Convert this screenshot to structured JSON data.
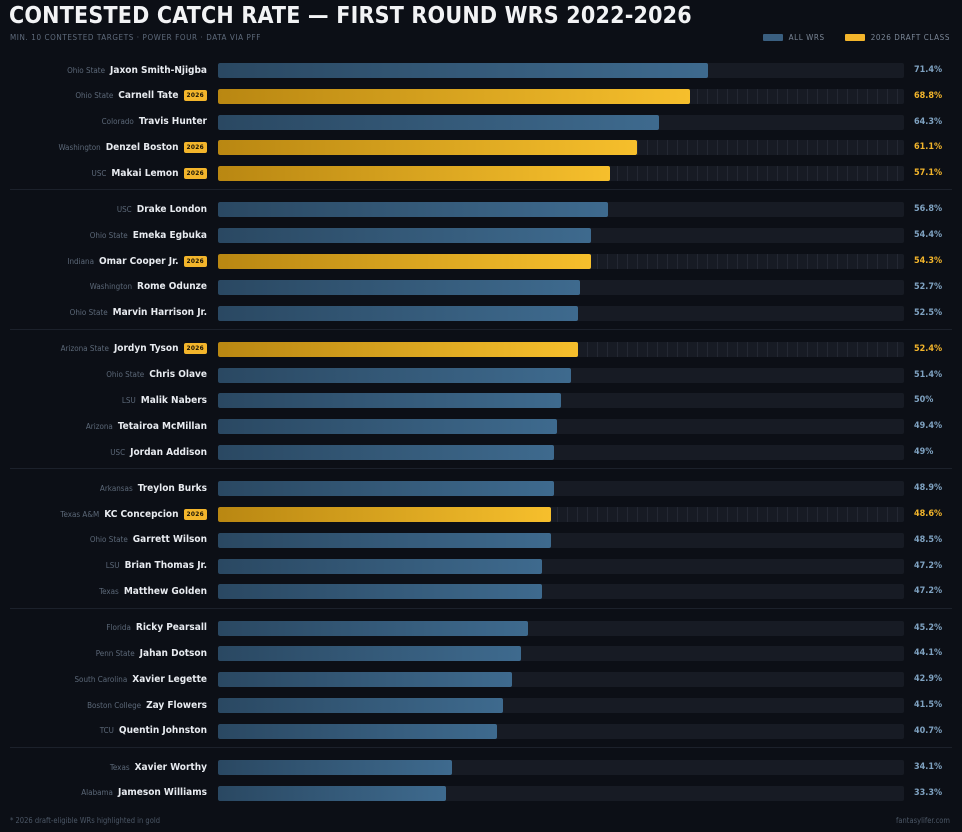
{
  "header": {
    "title": "CONTESTED CATCH RATE — FIRST ROUND WRS 2022-2026",
    "subtitle": "MIN. 10 CONTESTED TARGETS · POWER FOUR · DATA VIA PFF"
  },
  "legend": [
    {
      "label": "ALL WRS",
      "color": "#3a5f80"
    },
    {
      "label": "2026 DRAFT CLASS",
      "color": "#f3b52b"
    }
  ],
  "badge_label": "2026",
  "footer": {
    "note": "* 2026 draft-eligible WRs highlighted in gold",
    "credit": "fantasylifer.com"
  },
  "chart_data": {
    "type": "bar",
    "orientation": "horizontal",
    "title": "CONTESTED CATCH RATE — FIRST ROUND WRS 2022-2026",
    "xlim": [
      0,
      100
    ],
    "unit": "%",
    "rows": [
      {
        "school": "Ohio State",
        "player": "Jaxon Smith-Njigba",
        "value": 71.4,
        "label": "71.4%",
        "draft2026": false
      },
      {
        "school": "Ohio State",
        "player": "Carnell Tate",
        "value": 68.8,
        "label": "68.8%",
        "draft2026": true
      },
      {
        "school": "Colorado",
        "player": "Travis Hunter",
        "value": 64.3,
        "label": "64.3%",
        "draft2026": false
      },
      {
        "school": "Washington",
        "player": "Denzel Boston",
        "value": 61.1,
        "label": "61.1%",
        "draft2026": true
      },
      {
        "school": "USC",
        "player": "Makai Lemon",
        "value": 57.1,
        "label": "57.1%",
        "draft2026": true
      },
      {
        "school": "USC",
        "player": "Drake London",
        "value": 56.8,
        "label": "56.8%",
        "draft2026": false
      },
      {
        "school": "Ohio State",
        "player": "Emeka Egbuka",
        "value": 54.4,
        "label": "54.4%",
        "draft2026": false
      },
      {
        "school": "Indiana",
        "player": "Omar Cooper Jr.",
        "value": 54.3,
        "label": "54.3%",
        "draft2026": true
      },
      {
        "school": "Washington",
        "player": "Rome Odunze",
        "value": 52.7,
        "label": "52.7%",
        "draft2026": false
      },
      {
        "school": "Ohio State",
        "player": "Marvin Harrison Jr.",
        "value": 52.5,
        "label": "52.5%",
        "draft2026": false
      },
      {
        "school": "Arizona State",
        "player": "Jordyn Tyson",
        "value": 52.4,
        "label": "52.4%",
        "draft2026": true
      },
      {
        "school": "Ohio State",
        "player": "Chris Olave",
        "value": 51.4,
        "label": "51.4%",
        "draft2026": false
      },
      {
        "school": "LSU",
        "player": "Malik Nabers",
        "value": 50,
        "label": "50%",
        "draft2026": false
      },
      {
        "school": "Arizona",
        "player": "Tetairoa McMillan",
        "value": 49.4,
        "label": "49.4%",
        "draft2026": false
      },
      {
        "school": "USC",
        "player": "Jordan Addison",
        "value": 49,
        "label": "49%",
        "draft2026": false
      },
      {
        "school": "Arkansas",
        "player": "Treylon Burks",
        "value": 48.9,
        "label": "48.9%",
        "draft2026": false
      },
      {
        "school": "Texas A&M",
        "player": "KC Concepcion",
        "value": 48.6,
        "label": "48.6%",
        "draft2026": true
      },
      {
        "school": "Ohio State",
        "player": "Garrett Wilson",
        "value": 48.5,
        "label": "48.5%",
        "draft2026": false
      },
      {
        "school": "LSU",
        "player": "Brian Thomas Jr.",
        "value": 47.2,
        "label": "47.2%",
        "draft2026": false
      },
      {
        "school": "Texas",
        "player": "Matthew Golden",
        "value": 47.2,
        "label": "47.2%",
        "draft2026": false
      },
      {
        "school": "Florida",
        "player": "Ricky Pearsall",
        "value": 45.2,
        "label": "45.2%",
        "draft2026": false
      },
      {
        "school": "Penn State",
        "player": "Jahan Dotson",
        "value": 44.1,
        "label": "44.1%",
        "draft2026": false
      },
      {
        "school": "South Carolina",
        "player": "Xavier Legette",
        "value": 42.9,
        "label": "42.9%",
        "draft2026": false
      },
      {
        "school": "Boston College",
        "player": "Zay Flowers",
        "value": 41.5,
        "label": "41.5%",
        "draft2026": false
      },
      {
        "school": "TCU",
        "player": "Quentin Johnston",
        "value": 40.7,
        "label": "40.7%",
        "draft2026": false
      },
      {
        "school": "Texas",
        "player": "Xavier Worthy",
        "value": 34.1,
        "label": "34.1%",
        "draft2026": false
      },
      {
        "school": "Alabama",
        "player": "Jameson Williams",
        "value": 33.3,
        "label": "33.3%",
        "draft2026": false
      }
    ]
  }
}
